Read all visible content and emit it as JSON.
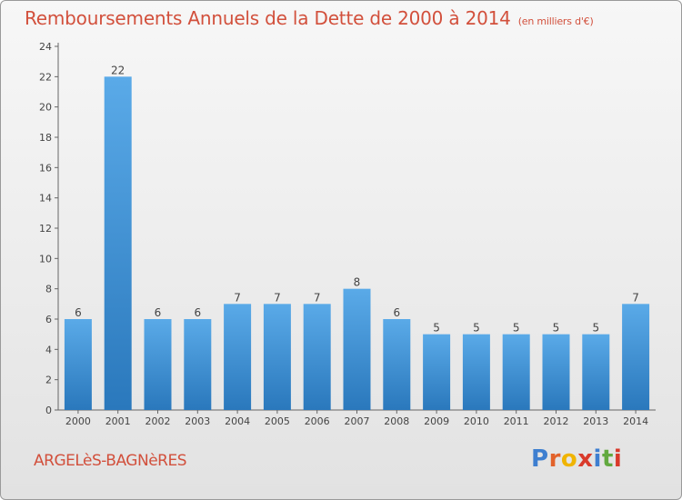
{
  "header": {
    "title": "Remboursements Annuels de la Dette de 2000 à 2014",
    "subtitle": "(en milliers d'€)"
  },
  "footer": {
    "commune": "ARGELèS-BAGNèRES",
    "logo_letters": [
      "P",
      "r",
      "o",
      "x",
      "i",
      "t",
      "i"
    ],
    "logo_colors": [
      "#3e7fd0",
      "#e2622b",
      "#f0b400",
      "#d93a2b",
      "#3e7fd0",
      "#62a93f",
      "#d93a2b"
    ]
  },
  "colors": {
    "bar_top": "#5aaae8",
    "bar_bottom": "#2a78bc",
    "axis": "#666666",
    "text": "#444444"
  },
  "chart_data": {
    "type": "bar",
    "title": "Remboursements Annuels de la Dette de 2000 à 2014",
    "subtitle": "(en milliers d'€)",
    "xlabel": "",
    "ylabel": "",
    "categories": [
      "2000",
      "2001",
      "2002",
      "2003",
      "2004",
      "2005",
      "2006",
      "2007",
      "2008",
      "2009",
      "2010",
      "2011",
      "2012",
      "2013",
      "2014"
    ],
    "values": [
      6,
      22,
      6,
      6,
      7,
      7,
      7,
      8,
      6,
      5,
      5,
      5,
      5,
      5,
      7
    ],
    "data_labels": [
      "6",
      "22",
      "6",
      "6",
      "7",
      "7",
      "7",
      "8",
      "6",
      "5",
      "5",
      "5",
      "5",
      "5",
      "7"
    ],
    "ylim": [
      0,
      24
    ],
    "yticks": [
      0,
      2,
      4,
      6,
      8,
      10,
      12,
      14,
      16,
      18,
      20,
      22,
      24
    ],
    "grid": false
  }
}
